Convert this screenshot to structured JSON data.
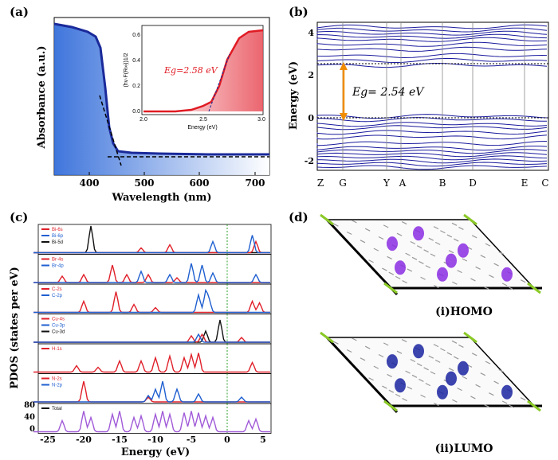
{
  "panel_labels": {
    "a": "(a)",
    "b": "(b)",
    "c": "(c)",
    "d": "(d)"
  },
  "panel_a": {
    "ylabel": "Absorbance (a.u.)",
    "xlabel": "Wavelength (nm)",
    "xticks": [
      "400",
      "500",
      "600",
      "700"
    ],
    "inset": {
      "ylabel": "(hv·F(R∞))1/2",
      "xlabel": "Energy (eV)",
      "xticks": [
        "2.0",
        "2.5",
        "3.0"
      ],
      "yticks": [
        "0.0",
        "0.2",
        "0.4",
        "0.6"
      ],
      "eg_label": "Eg=2.58 eV",
      "color": "#e01b24"
    },
    "curve_color": "#1a2a9a"
  },
  "panel_b": {
    "ylabel": "Energy (eV)",
    "yticks": [
      "4",
      "2",
      "0",
      "-2"
    ],
    "kpoints": [
      "Z",
      "G",
      "Y",
      "A",
      "B",
      "D",
      "E",
      "C"
    ],
    "eg_label": "Eg= 2.54 eV",
    "band_color": "#1a1a9e",
    "arrow_color": "#f08c00"
  },
  "panel_c": {
    "ylabel": "PDOS (states per eV)",
    "xlabel": "Energy (eV)",
    "xticks": [
      "-25",
      "-20",
      "-15",
      "-10",
      "-5",
      "0",
      "5"
    ],
    "total_yticks": [
      "80",
      "40",
      "0"
    ],
    "rows": [
      {
        "legend": [
          "Bi-6s",
          "Bi-6p",
          "Bi-5d"
        ]
      },
      {
        "legend": [
          "Br-4s",
          "Br-4p"
        ]
      },
      {
        "legend": [
          "C-2s",
          "C-2p"
        ]
      },
      {
        "legend": [
          "Cu-4s",
          "Cu-3p",
          "Cu-3d"
        ]
      },
      {
        "legend": [
          "H-1s"
        ]
      },
      {
        "legend": [
          "N-2s",
          "N-2p"
        ]
      },
      {
        "legend": [
          "Total"
        ]
      }
    ],
    "colors": {
      "red": "#e0202a",
      "blue": "#1f5fd0",
      "black": "#111111",
      "total": "#a05ad8",
      "fermi": "#2ca02c"
    }
  },
  "panel_d": {
    "homo_label": "(i)HOMO",
    "lumo_label": "(ii)LUMO",
    "homo_color": "#8a2be2",
    "lumo_color": "#1a23a0"
  }
}
